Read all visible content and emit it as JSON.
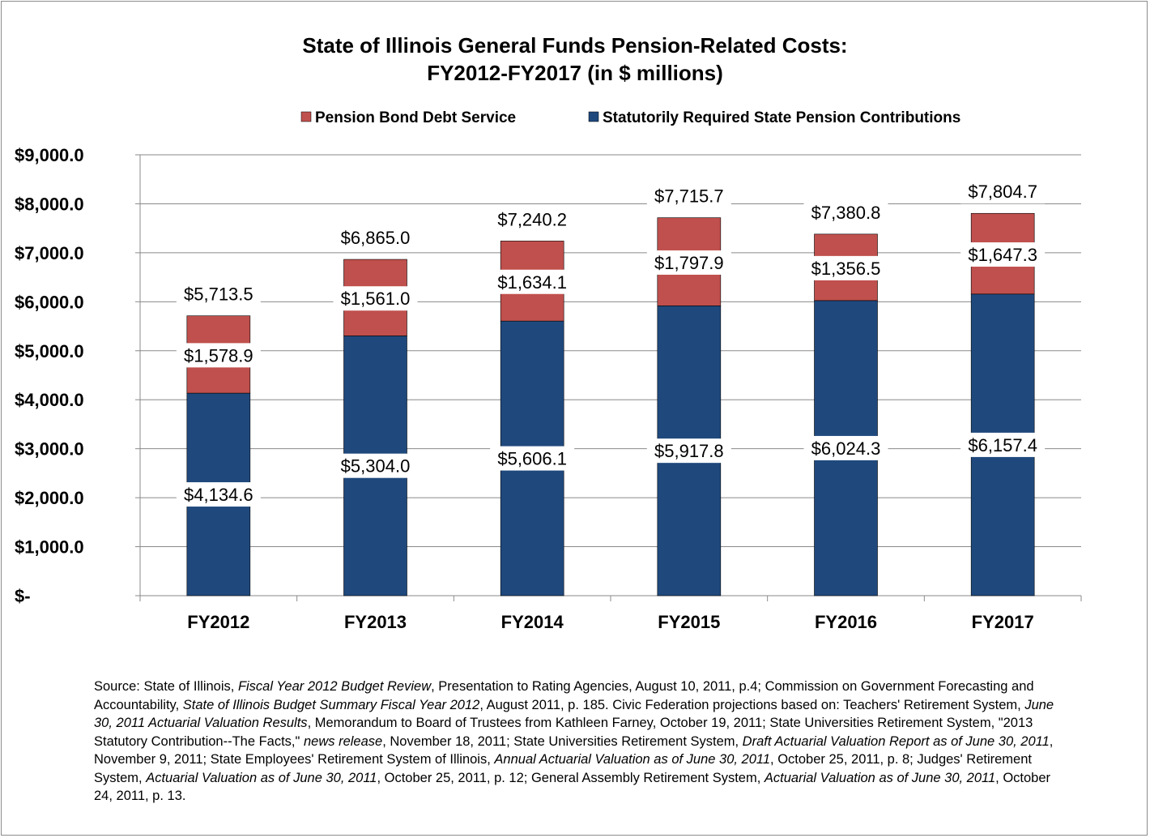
{
  "chart_data": {
    "type": "bar",
    "stacked": true,
    "title": "State of Illinois General Funds Pension-Related Costs:",
    "subtitle": "FY2012-FY2017 (in $ millions)",
    "categories": [
      "FY2012",
      "FY2013",
      "FY2014",
      "FY2015",
      "FY2016",
      "FY2017"
    ],
    "series": [
      {
        "name": "Statutorily Required State Pension Contributions",
        "color": "#1f497d",
        "values": [
          4134.6,
          5304.0,
          5606.1,
          5917.8,
          6024.3,
          6157.4
        ],
        "labels": [
          "$4,134.6",
          "$5,304.0",
          "$5,606.1",
          "$5,917.8",
          "$6,024.3",
          "$6,157.4"
        ]
      },
      {
        "name": "Pension Bond Debt Service",
        "color": "#c0504d",
        "values": [
          1578.9,
          1561.0,
          1634.1,
          1797.9,
          1356.5,
          1647.3
        ],
        "labels": [
          "$1,578.9",
          "$1,561.0",
          "$1,634.1",
          "$1,797.9",
          "$1,356.5",
          "$1,647.3"
        ]
      }
    ],
    "totals": [
      "$5,713.5",
      "$6,865.0",
      "$7,240.2",
      "$7,715.7",
      "$7,380.8",
      "$7,804.7"
    ],
    "ylim": [
      0,
      9000
    ],
    "yticks": [
      0,
      1000,
      2000,
      3000,
      4000,
      5000,
      6000,
      7000,
      8000,
      9000
    ],
    "ytick_labels": [
      "$-",
      "$1,000.0",
      "$2,000.0",
      "$3,000.0",
      "$4,000.0",
      "$5,000.0",
      "$6,000.0",
      "$7,000.0",
      "$8,000.0",
      "$9,000.0"
    ],
    "grid": true,
    "legend_position": "top",
    "legend_order": [
      "Pension Bond Debt Service",
      "Statutorily Required State Pension Contributions"
    ]
  },
  "source": {
    "segments": [
      {
        "text": "Source: State of Illinois, ",
        "italic": false
      },
      {
        "text": "Fiscal Year 2012 Budget Review",
        "italic": true
      },
      {
        "text": ", Presentation to Rating Agencies, August 10, 2011, p.4; Commission on Government Forecasting and Accountability, ",
        "italic": false
      },
      {
        "text": "State of Illinois  Budget Summary Fiscal Year 2012",
        "italic": true
      },
      {
        "text": ", August 2011, p. 185. Civic Federation projections based on: Teachers' Retirement System, ",
        "italic": false
      },
      {
        "text": "June 30, 2011 Actuarial Valuation Results",
        "italic": true
      },
      {
        "text": ", Memorandum to Board of Trustees from Kathleen Farney, October 19, 2011; State Universities Retirement System, \"2013 Statutory Contribution--The Facts,\" ",
        "italic": false
      },
      {
        "text": "news release",
        "italic": true
      },
      {
        "text": ", November 18, 2011; State Universities Retirement System, ",
        "italic": false
      },
      {
        "text": "Draft Actuarial Valuation Report as of June 30, 2011",
        "italic": true
      },
      {
        "text": ", November 9, 2011; State Employees' Retirement System of Illinois, ",
        "italic": false
      },
      {
        "text": "Annual Actuarial Valuation as of June 30, 2011",
        "italic": true
      },
      {
        "text": ", October 25, 2011, p. 8; Judges' Retirement System, ",
        "italic": false
      },
      {
        "text": "Actuarial Valuation as of June 30, 2011",
        "italic": true
      },
      {
        "text": ", October 25, 2011, p. 12; General Assembly Retirement System, ",
        "italic": false
      },
      {
        "text": "Actuarial Valuation as of June 30, 2011",
        "italic": true
      },
      {
        "text": ", October 24, 2011, p. 13.",
        "italic": false
      }
    ]
  }
}
